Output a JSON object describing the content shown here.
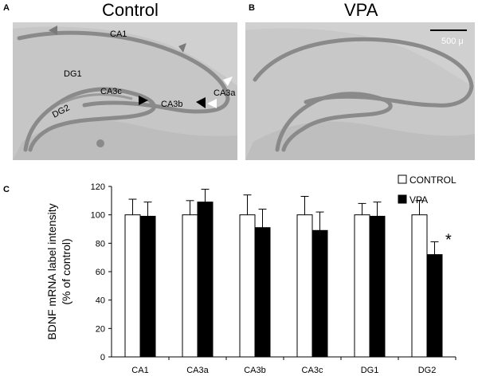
{
  "panels": {
    "a": {
      "letter": "A",
      "title": "Control",
      "labels": {
        "ca1": "CA1",
        "dg1": "DG1",
        "dg2": "DG2",
        "ca3c": "CA3c",
        "ca3b": "CA3b",
        "ca3a": "CA3a"
      }
    },
    "b": {
      "letter": "B",
      "title": "VPA",
      "scale_bar": "500 μ"
    },
    "c": {
      "letter": "C"
    }
  },
  "colors": {
    "tissue": "#d0d0d0",
    "cell_layer": "#8a8a8a",
    "control_bar": "#ffffff",
    "vpa_bar": "#000000"
  },
  "chart_data": {
    "type": "bar",
    "categories": [
      "CA1",
      "CA3a",
      "CA3b",
      "CA3c",
      "DG1",
      "DG2"
    ],
    "series": [
      {
        "name": "CONTROL",
        "values": [
          100,
          100,
          100,
          100,
          100,
          100
        ],
        "errors": [
          11,
          10,
          14,
          13,
          8,
          10
        ]
      },
      {
        "name": "VPA",
        "values": [
          99,
          109,
          91,
          89,
          99,
          72
        ],
        "errors": [
          10,
          9,
          13,
          13,
          10,
          9
        ]
      }
    ],
    "ylabel": "BDNF mRNA label intensity\n(% of control)",
    "ylim": [
      0,
      120
    ],
    "yticks": [
      0,
      20,
      40,
      60,
      80,
      100,
      120
    ],
    "significance": [
      {
        "category": "DG2",
        "marker": "*"
      }
    ],
    "legend_position": "top-right"
  }
}
